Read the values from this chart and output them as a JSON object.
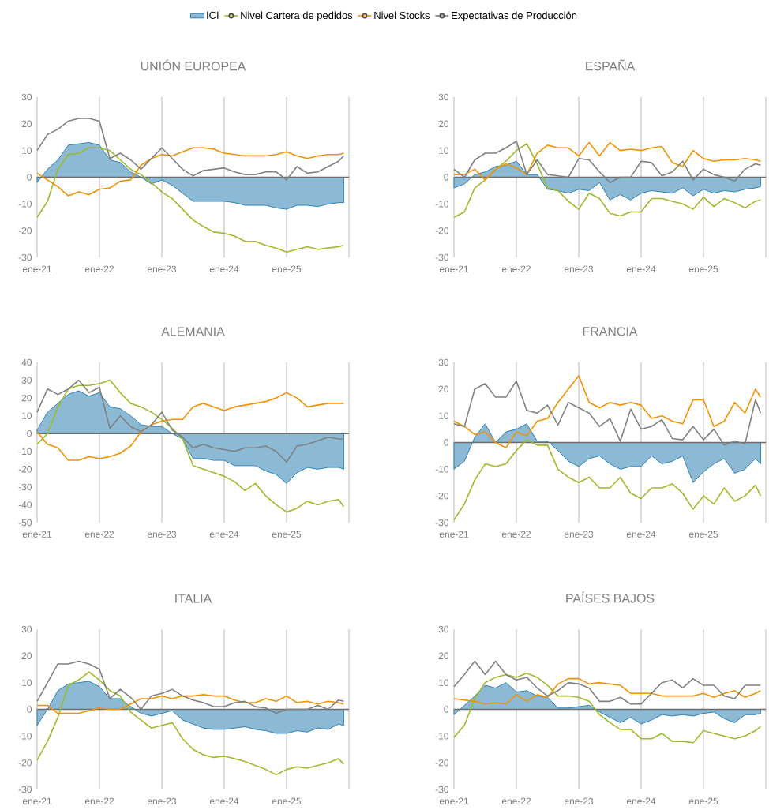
{
  "chart_data": [
    {
      "type": "line",
      "title": "UNIÓN EUROPEA",
      "legend": "top",
      "grid": "x",
      "x": [
        "2021-01",
        "2021-03",
        "2021-05",
        "2021-07",
        "2021-09",
        "2021-11",
        "2022-01",
        "2022-03",
        "2022-05",
        "2022-07",
        "2022-09",
        "2022-11",
        "2023-01",
        "2023-03",
        "2023-05",
        "2023-07",
        "2023-09",
        "2023-11",
        "2024-01",
        "2024-03",
        "2024-05",
        "2024-07",
        "2024-09",
        "2024-11",
        "2025-01",
        "2025-03",
        "2025-05",
        "2025-07",
        "2025-09",
        "2025-11",
        "2025-12"
      ],
      "xlim": [
        "2021-01",
        "2026-01"
      ],
      "xticks": [
        {
          "value": "2021-01",
          "label": "ene-21"
        },
        {
          "value": "2022-01",
          "label": "ene-22"
        },
        {
          "value": "2023-01",
          "label": "ene-23"
        },
        {
          "value": "2024-01",
          "label": "ene-24"
        },
        {
          "value": "2025-01",
          "label": "ene-25"
        },
        {
          "value": "2026-01",
          "label": null
        }
      ],
      "ylim": [
        -30,
        30
      ],
      "yticks": [
        -30,
        -20,
        -10,
        0,
        10,
        20,
        30
      ],
      "series": [
        {
          "name": "ICI",
          "type": "area",
          "color": "#2e7fb0",
          "values": [
            -2,
            3,
            6.5,
            12,
            12.5,
            13,
            12,
            6.5,
            5.5,
            2,
            0,
            -2.5,
            -1,
            -3,
            -6,
            -9,
            -9,
            -9,
            -9,
            -9.5,
            -10.5,
            -10.5,
            -10.5,
            -11.5,
            -12,
            -10.5,
            -10.5,
            -11,
            -10,
            -9.5,
            -9.5
          ]
        },
        {
          "name": "Nivel Cartera de pedidos",
          "type": "line",
          "color": "#9bbb2a",
          "values": [
            -15,
            -9,
            3,
            8.5,
            9,
            11,
            11,
            10,
            6.5,
            3,
            1,
            -2,
            -5.5,
            -8,
            -12,
            -16,
            -18.5,
            -20.5,
            -21,
            -22,
            -24,
            -24,
            -25.5,
            -26.5,
            -28,
            -27,
            -26,
            -27,
            -26.5,
            -26,
            -25.5
          ]
        },
        {
          "name": "Nivel Stocks",
          "type": "line",
          "color": "#f39200",
          "values": [
            1.5,
            -1,
            -3.5,
            -7,
            -5.5,
            -6.5,
            -4.5,
            -4,
            -1.5,
            -1,
            4.5,
            7,
            8.5,
            8,
            9.5,
            11,
            11,
            10.5,
            9,
            8.5,
            8,
            8,
            8,
            8.5,
            9.5,
            8,
            7,
            8,
            8.5,
            8.5,
            9
          ]
        },
        {
          "name": "Expectativas de Producción",
          "type": "line",
          "color": "#808080",
          "values": [
            10,
            16,
            18,
            21,
            22,
            22,
            21,
            7,
            9,
            6.5,
            3,
            7,
            11,
            7,
            3,
            0.5,
            2.5,
            3,
            3.5,
            2,
            1,
            1,
            2,
            2,
            -1,
            4,
            1.5,
            2,
            4,
            6,
            8
          ]
        }
      ]
    },
    {
      "type": "line",
      "title": "ESPAÑA",
      "grid": "x",
      "x": [
        "2021-01",
        "2021-03",
        "2021-05",
        "2021-07",
        "2021-09",
        "2021-11",
        "2022-01",
        "2022-03",
        "2022-05",
        "2022-07",
        "2022-09",
        "2022-11",
        "2023-01",
        "2023-03",
        "2023-05",
        "2023-07",
        "2023-09",
        "2023-11",
        "2024-01",
        "2024-03",
        "2024-05",
        "2024-07",
        "2024-09",
        "2024-11",
        "2025-01",
        "2025-03",
        "2025-05",
        "2025-07",
        "2025-09",
        "2025-11",
        "2025-12"
      ],
      "xlim": [
        "2021-01",
        "2026-01"
      ],
      "xticks": [
        {
          "value": "2021-01",
          "label": "ene-21"
        },
        {
          "value": "2022-01",
          "label": "ene-22"
        },
        {
          "value": "2023-01",
          "label": "ene-23"
        },
        {
          "value": "2024-01",
          "label": "ene-24"
        },
        {
          "value": "2025-01",
          "label": "ene-25"
        },
        {
          "value": "2026-01",
          "label": null
        }
      ],
      "ylim": [
        -30,
        30
      ],
      "yticks": [
        -30,
        -20,
        -10,
        0,
        10,
        20,
        30
      ],
      "series": [
        {
          "type": "area",
          "color": "#2e7fb0",
          "values": [
            -4,
            -2.5,
            1,
            2,
            4,
            4.5,
            6,
            1,
            1,
            -4.5,
            -5,
            -6,
            -4.5,
            -5,
            -2,
            -8.5,
            -6.5,
            -8.5,
            -6,
            -5,
            -5.5,
            -6,
            -4,
            -7,
            -4.5,
            -6,
            -5,
            -5.5,
            -4.5,
            -4,
            -3.5
          ]
        },
        {
          "type": "line",
          "color": "#9bbb2a",
          "values": [
            -15,
            -13,
            -4,
            -1,
            3,
            6,
            10,
            12.5,
            5,
            -4,
            -5,
            -9,
            -12,
            -6,
            -8,
            -13.5,
            -14.5,
            -13,
            -13,
            -8,
            -8,
            -9,
            -10,
            -12,
            -7.5,
            -11,
            -8,
            -9.5,
            -11.5,
            -9,
            -8.5
          ]
        },
        {
          "type": "line",
          "color": "#f39200",
          "values": [
            1,
            1,
            3,
            -1,
            3,
            5,
            3.5,
            1,
            9,
            12,
            11,
            11,
            8,
            13,
            8,
            13,
            10,
            10.5,
            10,
            11,
            11.5,
            5.5,
            4,
            10,
            7,
            6,
            6.5,
            6.5,
            7,
            6.5,
            6
          ]
        },
        {
          "type": "line",
          "color": "#808080",
          "values": [
            3,
            0,
            6.5,
            9,
            9,
            11,
            13.5,
            1,
            6.5,
            1,
            0.5,
            0,
            7,
            6.5,
            2,
            -2,
            0,
            0,
            6,
            5.5,
            0.5,
            2,
            6,
            -1,
            3,
            1,
            0,
            -1.5,
            3,
            5,
            4.5
          ]
        }
      ]
    },
    {
      "type": "line",
      "title": "ALEMANIA",
      "grid": "x",
      "x": [
        "2021-01",
        "2021-03",
        "2021-05",
        "2021-07",
        "2021-09",
        "2021-11",
        "2022-01",
        "2022-03",
        "2022-05",
        "2022-07",
        "2022-09",
        "2022-11",
        "2023-01",
        "2023-03",
        "2023-05",
        "2023-07",
        "2023-09",
        "2023-11",
        "2024-01",
        "2024-03",
        "2024-05",
        "2024-07",
        "2024-09",
        "2024-11",
        "2025-01",
        "2025-03",
        "2025-05",
        "2025-07",
        "2025-09",
        "2025-11",
        "2025-12"
      ],
      "xlim": [
        "2021-01",
        "2026-01"
      ],
      "xticks": [
        {
          "value": "2021-01",
          "label": "ene-21"
        },
        {
          "value": "2022-01",
          "label": "ene-22"
        },
        {
          "value": "2023-01",
          "label": "ene-23"
        },
        {
          "value": "2024-01",
          "label": "ene-24"
        },
        {
          "value": "2025-01",
          "label": "ene-25"
        },
        {
          "value": "2026-01",
          "label": null
        }
      ],
      "ylim": [
        -50,
        40
      ],
      "yticks": [
        -50,
        -40,
        -30,
        -20,
        -10,
        0,
        10,
        20,
        30,
        40
      ],
      "series": [
        {
          "type": "area",
          "color": "#2e7fb0",
          "values": [
            2,
            12,
            17,
            22,
            24,
            21,
            23,
            15,
            14,
            10,
            5,
            4,
            4,
            0,
            -3,
            -14,
            -14,
            -15,
            -15,
            -18,
            -18,
            -18,
            -21,
            -23,
            -28,
            -22,
            -19,
            -20,
            -19,
            -19,
            -20
          ]
        },
        {
          "type": "line",
          "color": "#9bbb2a",
          "values": [
            -6,
            0,
            15,
            25,
            27,
            27,
            28,
            30,
            23,
            17,
            15,
            12,
            8,
            3,
            -3,
            -18,
            -20,
            -22,
            -24,
            -27,
            -32,
            -28,
            -35,
            -40,
            -44,
            -42,
            -38,
            -40,
            -38,
            -37,
            -41
          ]
        },
        {
          "type": "line",
          "color": "#f39200",
          "values": [
            1,
            -6,
            -8,
            -15,
            -15,
            -13,
            -14,
            -13,
            -11,
            -7,
            1,
            5,
            7,
            8,
            8,
            15,
            17,
            15,
            13,
            15,
            16,
            17,
            18,
            20,
            23,
            20,
            15,
            16,
            17,
            17,
            17
          ]
        },
        {
          "type": "line",
          "color": "#808080",
          "values": [
            12,
            25,
            22,
            25,
            30,
            23,
            26,
            3,
            10,
            4,
            1,
            5,
            12,
            2,
            -2,
            -8,
            -6,
            -8,
            -9,
            -10,
            -8,
            -8,
            -7,
            -10,
            -16,
            -7,
            -6,
            -4,
            -2,
            -3,
            -3
          ]
        }
      ]
    },
    {
      "type": "line",
      "title": "FRANCIA",
      "grid": "x",
      "x": [
        "2021-01",
        "2021-03",
        "2021-05",
        "2021-07",
        "2021-09",
        "2021-11",
        "2022-01",
        "2022-03",
        "2022-05",
        "2022-07",
        "2022-09",
        "2022-11",
        "2023-01",
        "2023-03",
        "2023-05",
        "2023-07",
        "2023-09",
        "2023-11",
        "2024-01",
        "2024-03",
        "2024-05",
        "2024-07",
        "2024-09",
        "2024-11",
        "2025-01",
        "2025-03",
        "2025-05",
        "2025-07",
        "2025-09",
        "2025-11",
        "2025-12"
      ],
      "xlim": [
        "2021-01",
        "2026-01"
      ],
      "xticks": [
        {
          "value": "2021-01",
          "label": "ene-21"
        },
        {
          "value": "2022-01",
          "label": "ene-22"
        },
        {
          "value": "2023-01",
          "label": "ene-23"
        },
        {
          "value": "2024-01",
          "label": "ene-24"
        },
        {
          "value": "2025-01",
          "label": "ene-25"
        },
        {
          "value": "2026-01",
          "label": null
        }
      ],
      "ylim": [
        -30,
        30
      ],
      "yticks": [
        -30,
        -20,
        -10,
        0,
        10,
        20,
        30
      ],
      "series": [
        {
          "type": "area",
          "color": "#2e7fb0",
          "values": [
            -10,
            -7,
            2,
            7,
            0,
            4,
            5,
            7,
            0.5,
            0.5,
            -3,
            -7,
            -9,
            -6,
            -5,
            -8,
            -10,
            -9,
            -9,
            -5,
            -8,
            -7,
            -5,
            -15,
            -11,
            -8,
            -6,
            -11.5,
            -10,
            -6,
            -8
          ]
        },
        {
          "type": "line",
          "color": "#9bbb2a",
          "values": [
            -29,
            -23,
            -14,
            -8,
            -9,
            -8,
            -3,
            1,
            -1,
            -1,
            -10,
            -13,
            -15,
            -13,
            -17,
            -17,
            -13,
            -19,
            -21,
            -17,
            -17,
            -15.5,
            -19,
            -25,
            -20,
            -23,
            -17,
            -22,
            -20,
            -16,
            -20
          ]
        },
        {
          "type": "line",
          "color": "#f39200",
          "values": [
            8,
            6,
            3,
            4,
            0,
            -2,
            4,
            2.5,
            8,
            9,
            15,
            20,
            25,
            15,
            13,
            15,
            14,
            15,
            14,
            9,
            10,
            8,
            7,
            16,
            16,
            6,
            8,
            15,
            11,
            20,
            17
          ]
        },
        {
          "type": "line",
          "color": "#808080",
          "values": [
            7,
            6,
            20,
            22,
            17,
            17,
            23,
            12,
            11,
            14,
            6.5,
            15,
            13,
            11,
            6,
            9,
            0.5,
            12.5,
            5,
            6,
            8.5,
            1.5,
            1,
            6,
            1,
            5,
            -1,
            0.5,
            -0.5,
            16,
            11
          ]
        }
      ]
    },
    {
      "type": "line",
      "title": "ITALIA",
      "grid": "x",
      "x": [
        "2021-01",
        "2021-03",
        "2021-05",
        "2021-07",
        "2021-09",
        "2021-11",
        "2022-01",
        "2022-03",
        "2022-05",
        "2022-07",
        "2022-09",
        "2022-11",
        "2023-01",
        "2023-03",
        "2023-05",
        "2023-07",
        "2023-09",
        "2023-11",
        "2024-01",
        "2024-03",
        "2024-05",
        "2024-07",
        "2024-09",
        "2024-11",
        "2025-01",
        "2025-03",
        "2025-05",
        "2025-07",
        "2025-09",
        "2025-11",
        "2025-12"
      ],
      "xlim": [
        "2021-01",
        "2026-01"
      ],
      "xticks": [
        {
          "value": "2021-01",
          "label": "ene-21"
        },
        {
          "value": "2022-01",
          "label": "ene-22"
        },
        {
          "value": "2023-01",
          "label": "ene-23"
        },
        {
          "value": "2024-01",
          "label": "ene-24"
        },
        {
          "value": "2025-01",
          "label": "ene-25"
        },
        {
          "value": "2026-01",
          "label": null
        }
      ],
      "ylim": [
        -30,
        30
      ],
      "yticks": [
        -30,
        -20,
        -10,
        0,
        10,
        20,
        30
      ],
      "series": [
        {
          "type": "area",
          "color": "#2e7fb0",
          "values": [
            -6,
            0,
            7,
            9.5,
            10,
            10.5,
            8.5,
            4,
            4,
            1,
            -1.5,
            -2.5,
            -1.5,
            -0.5,
            -4,
            -5.5,
            -7,
            -7.5,
            -7.5,
            -7,
            -6.5,
            -7.5,
            -8,
            -9,
            -9,
            -8,
            -8.5,
            -7,
            -7.5,
            -5.5,
            -6
          ]
        },
        {
          "type": "line",
          "color": "#9bbb2a",
          "values": [
            -19,
            -12,
            -3,
            9,
            11,
            14,
            11,
            7,
            5,
            -1,
            -4,
            -7,
            -6,
            -5,
            -11,
            -15,
            -17,
            -18,
            -17.5,
            -18.5,
            -19.5,
            -21,
            -22.5,
            -24.5,
            -22.5,
            -21.5,
            -22,
            -21,
            -20,
            -18.5,
            -20.5
          ]
        },
        {
          "type": "line",
          "color": "#f39200",
          "values": [
            1.5,
            1.5,
            -1.5,
            -1.5,
            -1.5,
            -0.5,
            0.5,
            0,
            0,
            2,
            4,
            4,
            5,
            4,
            5,
            5,
            5.5,
            5,
            5,
            3.5,
            2.5,
            2.5,
            4,
            3,
            5,
            2.5,
            3,
            2,
            3,
            2.5,
            2
          ]
        },
        {
          "type": "line",
          "color": "#808080",
          "values": [
            3,
            10,
            17,
            17,
            18,
            17,
            15,
            4,
            7.5,
            4.5,
            0,
            5,
            6,
            7.5,
            5,
            3.5,
            2.5,
            1,
            1,
            2.5,
            3,
            1,
            0.5,
            -1.5,
            0,
            0,
            0,
            1.5,
            0,
            3.5,
            3
          ]
        }
      ]
    },
    {
      "type": "line",
      "title": "PAÍSES BAJOS",
      "grid": "x",
      "x": [
        "2021-01",
        "2021-03",
        "2021-05",
        "2021-07",
        "2021-09",
        "2021-11",
        "2022-01",
        "2022-03",
        "2022-05",
        "2022-07",
        "2022-09",
        "2022-11",
        "2023-01",
        "2023-03",
        "2023-05",
        "2023-07",
        "2023-09",
        "2023-11",
        "2024-01",
        "2024-03",
        "2024-05",
        "2024-07",
        "2024-09",
        "2024-11",
        "2025-01",
        "2025-03",
        "2025-05",
        "2025-07",
        "2025-09",
        "2025-11",
        "2025-12"
      ],
      "xlim": [
        "2021-01",
        "2026-01"
      ],
      "xticks": [
        {
          "value": "2021-01",
          "label": "ene-21"
        },
        {
          "value": "2022-01",
          "label": "ene-22"
        },
        {
          "value": "2023-01",
          "label": "ene-23"
        },
        {
          "value": "2024-01",
          "label": "ene-24"
        },
        {
          "value": "2025-01",
          "label": "ene-25"
        },
        {
          "value": "2026-01",
          "label": null
        }
      ],
      "ylim": [
        -30,
        30
      ],
      "yticks": [
        -30,
        -20,
        -10,
        0,
        10,
        20,
        30
      ],
      "series": [
        {
          "type": "area",
          "color": "#2e7fb0",
          "values": [
            -2,
            1.5,
            5,
            9,
            8,
            10,
            6.5,
            7,
            5,
            4.5,
            0.5,
            0.5,
            1,
            1.5,
            -1,
            -3,
            -5,
            -3,
            -5.5,
            -4,
            -2,
            -2.5,
            -2,
            -2.5,
            -1.5,
            -1,
            -3.5,
            -5,
            -2,
            -2,
            -1.5
          ]
        },
        {
          "type": "line",
          "color": "#9bbb2a",
          "values": [
            -10.5,
            -6,
            4,
            10,
            12,
            13,
            12,
            13.5,
            12,
            9,
            5,
            5,
            4.5,
            3,
            -2,
            -5,
            -7.5,
            -7.5,
            -11,
            -11,
            -9,
            -12,
            -12,
            -12.5,
            -8,
            -9,
            -10,
            -11,
            -10,
            -8,
            -6.5
          ]
        },
        {
          "type": "line",
          "color": "#f39200",
          "values": [
            4,
            3.5,
            3,
            2,
            2.5,
            2,
            5.5,
            3,
            5.5,
            4.5,
            9.5,
            11.5,
            11.5,
            9.5,
            10,
            9.5,
            9,
            6,
            6,
            6,
            5,
            5,
            5,
            5,
            6,
            4.5,
            6,
            7,
            4.5,
            6,
            7
          ]
        },
        {
          "type": "line",
          "color": "#808080",
          "values": [
            8.5,
            13,
            18,
            13,
            18,
            13,
            11,
            12,
            8,
            5,
            7,
            10,
            9.5,
            8,
            3,
            3,
            4.5,
            2,
            2,
            6,
            10,
            11,
            8,
            11.5,
            9,
            9,
            5,
            4,
            9,
            9,
            9
          ]
        }
      ]
    }
  ]
}
